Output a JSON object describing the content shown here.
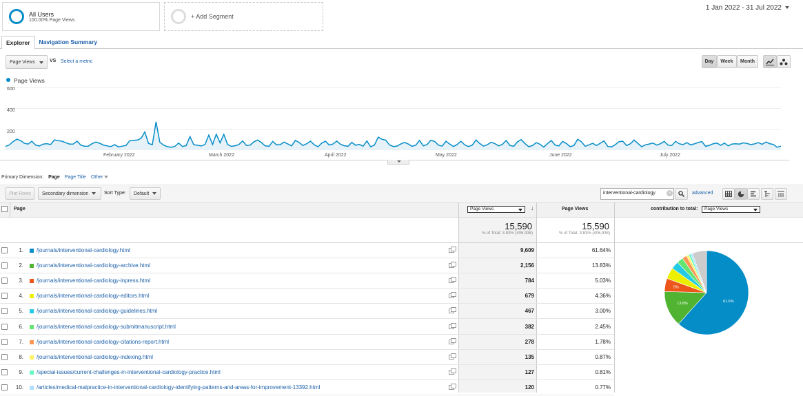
{
  "segments": [
    {
      "name": "All Users",
      "sub": "100.00% Page Views"
    },
    {
      "name": "+ Add Segment"
    }
  ],
  "date_range": "1 Jan 2022 - 31 Jul 2022",
  "tabs": [
    "Explorer",
    "Navigation Summary"
  ],
  "metric_select": "Page Views",
  "vs_label": "VS",
  "select_metric": "Select a metric",
  "granularity": [
    "Day",
    "Week",
    "Month"
  ],
  "chart": {
    "legend": "Page Views",
    "y_ticks": [
      "600",
      "400",
      "200"
    ],
    "x_ticks": [
      "February 2022",
      "March 2022",
      "April 2022",
      "May 2022",
      "June 2022",
      "July 2022"
    ]
  },
  "primary_dimension": {
    "label": "Primary Dimension:",
    "current": "Page",
    "options": [
      "Page Title",
      "Other"
    ]
  },
  "toolbar": {
    "plot_rows": "Plot Rows",
    "secondary": "Secondary dimension",
    "sort_type_label": "Sort Type:",
    "sort_type": "Default",
    "filter": "interventional-cardiology",
    "advanced": "advanced"
  },
  "table": {
    "header_page": "Page",
    "header_metric_select": "Page Views",
    "header_pv": "Page Views",
    "header_contribution": "contribution to total:",
    "contribution_select": "Page Views",
    "total_value_1": "15,590",
    "total_sub_1": "% of Total: 3.83% (406,938)",
    "total_value_2": "15,590",
    "total_sub_2": "% of Total: 3.83% (406,938)",
    "rows": [
      {
        "num": "1.",
        "path": "/journals/interventional-cardiology.html",
        "pv": "9,609",
        "pct": "61.64%",
        "color": "#058dc7"
      },
      {
        "num": "2.",
        "path": "/journals/interventional-cardiology-archive.html",
        "pv": "2,156",
        "pct": "13.83%",
        "color": "#50b432"
      },
      {
        "num": "3.",
        "path": "/journals/interventional-cardiology-inpress.html",
        "pv": "784",
        "pct": "5.03%",
        "color": "#ed561b"
      },
      {
        "num": "4.",
        "path": "/journals/interventional-cardiology-editors.html",
        "pv": "679",
        "pct": "4.36%",
        "color": "#edef00"
      },
      {
        "num": "5.",
        "path": "/journals/interventional-cardiology-guidelines.html",
        "pv": "467",
        "pct": "3.00%",
        "color": "#24cbe5"
      },
      {
        "num": "6.",
        "path": "/journals/interventional-cardiology-submitmanuscript.html",
        "pv": "382",
        "pct": "2.45%",
        "color": "#64e572"
      },
      {
        "num": "7.",
        "path": "/journals/interventional-cardiology-citations-report.html",
        "pv": "278",
        "pct": "1.78%",
        "color": "#ff9655"
      },
      {
        "num": "8.",
        "path": "/journals/interventional-cardiology-indexing.html",
        "pv": "135",
        "pct": "0.87%",
        "color": "#fff263"
      },
      {
        "num": "9.",
        "path": "/special-issues/current-challenges-in-interventional-cardiology-practice.html",
        "pv": "127",
        "pct": "0.81%",
        "color": "#6af9c4"
      },
      {
        "num": "10.",
        "path": "/articles/medical-malpractice-in-interventional-cardiology-identifying-patterns-and-areas-for-improvement-13392.html",
        "pv": "120",
        "pct": "0.77%",
        "color": "#b2deff"
      }
    ]
  },
  "pie": {
    "slices": [
      61.64,
      13.83,
      5.03,
      4.36,
      3.0,
      2.45,
      1.78,
      0.87,
      0.81,
      0.77,
      5.46
    ],
    "colors": [
      "#058dc7",
      "#50b432",
      "#ed561b",
      "#edef00",
      "#24cbe5",
      "#64e572",
      "#ff9655",
      "#fff263",
      "#6af9c4",
      "#b2deff",
      "#cccccc"
    ],
    "labels": [
      "61.6%",
      "13.8%",
      "5%"
    ]
  },
  "chart_data": {
    "type": "area",
    "series": [
      {
        "name": "Page Views",
        "values": [
          36,
          50,
          81,
          105,
          92,
          65,
          58,
          85,
          48,
          40,
          58,
          62,
          54,
          98,
          90,
          86,
          71,
          58,
          59,
          86,
          48,
          37,
          38,
          62,
          77,
          66,
          49,
          41,
          34,
          53,
          31,
          38,
          45,
          90,
          94,
          96,
          112,
          174,
          64,
          52,
          271,
          75,
          48,
          33,
          28,
          36,
          68,
          35,
          43,
          129,
          52,
          47,
          40,
          54,
          144,
          54,
          152,
          70,
          151,
          54,
          36,
          42,
          54,
          88,
          45,
          48,
          80,
          97,
          72,
          41,
          37,
          84,
          51,
          53,
          78,
          59,
          41,
          93,
          73,
          44,
          61,
          86,
          52,
          32,
          67,
          86,
          49,
          59,
          87,
          56,
          42,
          37,
          74,
          47,
          55,
          38,
          88,
          32,
          48,
          124,
          104,
          96,
          50,
          35,
          39,
          59,
          74,
          59,
          37,
          48,
          93,
          41,
          55,
          95,
          83,
          48,
          38,
          86,
          59,
          34,
          55,
          85,
          50,
          34,
          49,
          97,
          63,
          38,
          52,
          75,
          62,
          41,
          55,
          93,
          45,
          37,
          79,
          101,
          63,
          33,
          44,
          72,
          56,
          29,
          64,
          92,
          49,
          40,
          84,
          64,
          33,
          45,
          104,
          80,
          37,
          51,
          65,
          44,
          66,
          89,
          35,
          31,
          53,
          82,
          85,
          44,
          61,
          97,
          64,
          33,
          51,
          59,
          68,
          48,
          61,
          84,
          48,
          45,
          84,
          61,
          53,
          72,
          50,
          60,
          73,
          82,
          36,
          46,
          61,
          68,
          46,
          67,
          41,
          59,
          61,
          58,
          70,
          64,
          53,
          60,
          72,
          56,
          78,
          62,
          54,
          28,
          39
        ]
      }
    ],
    "y_ticks": [
      200,
      400,
      600
    ],
    "ylim": [
      0,
      600
    ],
    "x_ticks": [
      "February 2022",
      "March 2022",
      "April 2022",
      "May 2022",
      "June 2022",
      "July 2022"
    ],
    "x_range": [
      "1 Jan 2022",
      "31 Jul 2022"
    ]
  }
}
